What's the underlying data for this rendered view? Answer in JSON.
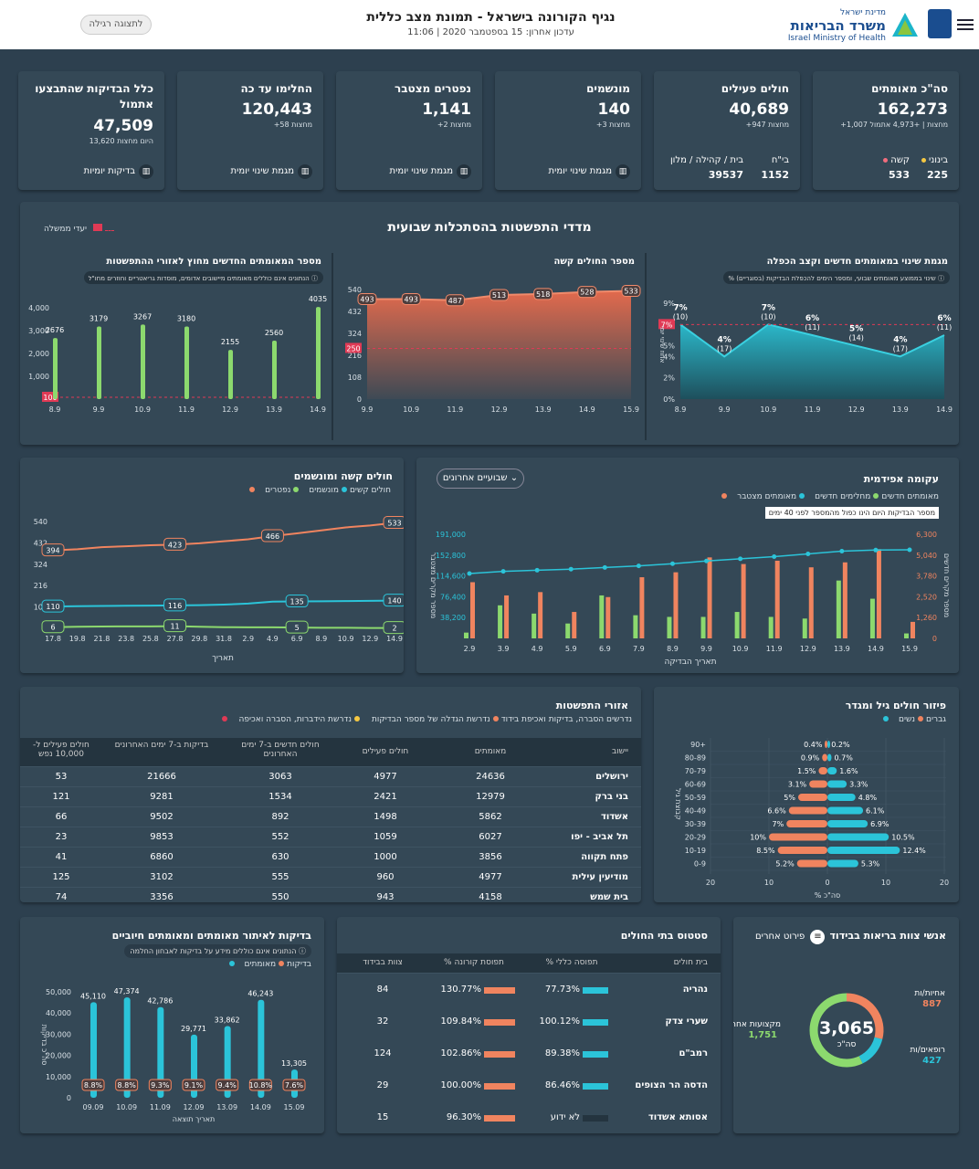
{
  "header": {
    "title": "נגיף הקורונה בישראל - תמונת מצב כללית",
    "updated": "עדכון אחרון: 15 בספטמבר 2020 | 11:06",
    "regular_view_button": "לתצוגה רגילה",
    "ministry_small": "מדינת ישראל",
    "ministry_name": "משרד הבריאות",
    "ministry_en": "Israel Ministry of Health"
  },
  "kpis": [
    {
      "title": "סה\"כ מאומתים",
      "value": "162,273",
      "sub": "+1,007 מחצות | +4,973 אתמול",
      "extra": [
        {
          "label": "בינוני",
          "value": "225",
          "color": "#f5c842"
        },
        {
          "label": "קשה",
          "value": "533",
          "color": "#f26d7d"
        }
      ]
    },
    {
      "title": "חולים פעילים",
      "value": "40,689",
      "sub": "+947 מחצות",
      "extra": [
        {
          "label": "בי\"ח",
          "value": "1152"
        },
        {
          "label": "בית / קהילה / מלון",
          "value": "39537"
        }
      ]
    },
    {
      "title": "מונשמים",
      "value": "140",
      "sub": "+3 מחצות",
      "link": "מגמת שינוי יומית"
    },
    {
      "title": "נפטרים מצטבר",
      "value": "1,141",
      "sub": "+2 מחצות",
      "link": "מגמת שינוי יומית"
    },
    {
      "title": "החלימו עד כה",
      "value": "120,443",
      "sub": "+58 מחצות",
      "link": "מגמת שינוי יומית"
    },
    {
      "title": "כלל הבדיקות שהתבצעו אתמול",
      "value": "47,509",
      "sub": "13,620 היום מחצות",
      "link": "בדיקות יומיות"
    }
  ],
  "weekly": {
    "title": "מדדי התפשטות בהסתכלות שבועית",
    "legend": "יעדי ממשלה",
    "chart_data": [
      {
        "type": "area",
        "title": "מגמת שינוי במאומתים חדשים וקצב הכפלה",
        "note": "% שינוי בממוצע מאומתים שבועי, ומספר הימים להכפלת הבדיקות (בסוגריים)",
        "categories": [
          "8.9",
          "9.9",
          "10.9",
          "11.9",
          "12.9",
          "13.9",
          "14.9"
        ],
        "values": [
          7,
          4,
          7,
          6,
          5,
          4,
          6
        ],
        "labels": [
          "7%\n(10)",
          "4%\n(17)",
          "7%\n(10)",
          "6%\n(11)",
          "5%\n(14)",
          "4%\n(17)",
          "6%\n(11)"
        ],
        "ylabel": "אחוז שינוי יומי",
        "yticks": [
          "0%",
          "2%",
          "4%",
          "5%",
          "7%",
          "9%"
        ],
        "target": "7%"
      },
      {
        "type": "area",
        "title": "מספר החולים קשה",
        "categories": [
          "9.9",
          "10.9",
          "11.9",
          "12.9",
          "13.9",
          "14.9",
          "15.9"
        ],
        "values": [
          493,
          493,
          487,
          513,
          518,
          528,
          533
        ],
        "yticks": [
          "0",
          "108",
          "216",
          "324",
          "432",
          "540"
        ],
        "target": "250"
      },
      {
        "type": "bar",
        "title": "מספר המאומתים החדשים מחוץ לאזורי ההתפשטות",
        "note": "הנתונים אינם כוללים מאומתים מיישובים אדומים, מוסדות גריאטריים וחוזרים מחו\"ל",
        "categories": [
          "8.9",
          "9.9",
          "10.9",
          "11.9",
          "12.9",
          "13.9",
          "14.9"
        ],
        "values": [
          2676,
          3179,
          3267,
          3180,
          2155,
          2560,
          4035
        ],
        "yticks": [
          "1,000",
          "2,000",
          "3,000",
          "4,000"
        ],
        "target": "100"
      }
    ]
  },
  "epi": {
    "title": "עקומה אפידמית",
    "dropdown": "שבועיים אחרונים",
    "legend": [
      "מאומתים חדשים",
      "מחלימים חדשים",
      "מאומתים מצטבר"
    ],
    "note": "מספר הבדיקות היום הינו כפול מהמספר לפני 40 ימים",
    "xlabel": "תאריך הבדיקה",
    "ylabel_left": "מספר מקרים מצטבר",
    "ylabel_right": "מספר מקרים חדשים",
    "yticks_left": [
      "38,200",
      "76,400",
      "114,600",
      "152,800",
      "191,000"
    ],
    "yticks_right": [
      "0",
      "1,260",
      "2,520",
      "3,780",
      "5,040",
      "6,300"
    ],
    "chart_data": {
      "type": "bar",
      "categories": [
        "2.9",
        "3.9",
        "4.9",
        "5.9",
        "6.9",
        "7.9",
        "8.9",
        "9.9",
        "10.9",
        "11.9",
        "12.9",
        "13.9",
        "14.9",
        "15.9"
      ],
      "series": [
        {
          "name": "מאומתים חדשים",
          "values": [
            3400,
            2600,
            2800,
            1600,
            2500,
            3700,
            4000,
            4900,
            4500,
            4700,
            4300,
            4600,
            5400,
            1000
          ]
        },
        {
          "name": "מחלימים חדשים",
          "values": [
            350,
            2000,
            1500,
            900,
            2600,
            1400,
            1300,
            1300,
            1600,
            1300,
            1200,
            3500,
            2400,
            300
          ]
        },
        {
          "name": "מאומתים מצטבר",
          "values": [
            119000,
            123000,
            125000,
            127000,
            130000,
            133000,
            137000,
            142000,
            146000,
            150000,
            155000,
            160000,
            162000,
            162500
          ]
        }
      ]
    }
  },
  "severe": {
    "title": "חולים קשה ומונשמים",
    "legend": [
      "חולים קשים",
      "מונשמים",
      "נפטרים"
    ],
    "xlabel": "תאריך",
    "yticks": [
      "1",
      "108",
      "216",
      "324",
      "432",
      "540"
    ],
    "chart_data": {
      "type": "line",
      "categories": [
        "17.8",
        "19.8",
        "21.8",
        "23.8",
        "25.8",
        "27.8",
        "29.8",
        "31.8",
        "2.9",
        "4.9",
        "6.9",
        "8.9",
        "10.9",
        "12.9",
        "14.9"
      ],
      "series": [
        {
          "name": "חולים קשים",
          "values": [
            394,
            400,
            410,
            415,
            420,
            423,
            430,
            440,
            450,
            466,
            480,
            495,
            510,
            520,
            533
          ],
          "labels": {
            "0": "394",
            "5": "423",
            "9": "466",
            "14": "533"
          }
        },
        {
          "name": "מונשמים",
          "values": [
            110,
            112,
            113,
            114,
            115,
            116,
            117,
            120,
            125,
            135,
            136,
            137,
            138,
            139,
            140
          ],
          "labels": {
            "0": "110",
            "5": "116",
            "10": "135",
            "14": "140"
          }
        },
        {
          "name": "נפטרים",
          "values": [
            6,
            8,
            9,
            10,
            10,
            11,
            8,
            6,
            5,
            5,
            4,
            3,
            3,
            2,
            2
          ],
          "labels": {
            "0": "6",
            "5": "11",
            "10": "5",
            "14": "2"
          }
        }
      ]
    }
  },
  "age": {
    "title": "פיזור חולים גיל ומגדר",
    "legend": [
      "גברים",
      "נשים"
    ],
    "ylabel": "קבוצת גיל",
    "xlabel": "% סה\"כ",
    "xticks": [
      "20",
      "10",
      "0",
      "10",
      "20"
    ],
    "chart_data": {
      "type": "bar",
      "categories": [
        "90+",
        "80-89",
        "70-79",
        "60-69",
        "50-59",
        "40-49",
        "30-39",
        "20-29",
        "10-19",
        "0-9"
      ],
      "series": [
        {
          "name": "גברים",
          "values": [
            0.2,
            0.7,
            1.6,
            3.3,
            4.8,
            6.1,
            6.9,
            10.5,
            12.4,
            5.3
          ]
        },
        {
          "name": "נשים",
          "values": [
            0.4,
            0.9,
            1.5,
            3.1,
            5,
            6.6,
            7,
            10,
            8.5,
            5.2
          ]
        }
      ]
    }
  },
  "regions": {
    "title": "אזורי התפשטות",
    "legend": [
      "נדרשים הסברה, בדיקות ואכיפת בידוד",
      "נדרשת הגדלה של מספר הבדיקות",
      "נדרשת הגדלה, בדיקות ואכיפת בידוד",
      "נדרשת הידברות, הסברה ואכיפה"
    ],
    "headers": [
      "יישוב",
      "מאומתים",
      "חולים פעילים",
      "חולים חדשים ב-7 ימים האחרונים",
      "בדיקות ב-7 ימים האחרונים",
      "חולים פעילים ל- 10,000 נפש"
    ],
    "rows": [
      [
        "ירושלים",
        "24636",
        "4977",
        "3063",
        "21666",
        "53"
      ],
      [
        "בני ברק",
        "12979",
        "2421",
        "1534",
        "9281",
        "121"
      ],
      [
        "אשדוד",
        "5862",
        "1498",
        "892",
        "9502",
        "66"
      ],
      [
        "תל אביב - יפו",
        "6027",
        "1059",
        "552",
        "9853",
        "23"
      ],
      [
        "פתח תקווה",
        "3856",
        "1000",
        "630",
        "6860",
        "41"
      ],
      [
        "מודיעין עילית",
        "4977",
        "960",
        "555",
        "3102",
        "125"
      ],
      [
        "בית שמש",
        "4158",
        "943",
        "550",
        "3356",
        "74"
      ]
    ]
  },
  "tests": {
    "title": "בדיקות לאיתור מאומתים ומאומתים חיוביים",
    "note": "הנתונים אינם כוללים מידע על בדיקות לאבחון החלמה",
    "legend": [
      "בדיקות",
      "מאומתים"
    ],
    "xlabel": "תאריך תוצאה",
    "ylabel": "סה\"כ בדיקות",
    "yticks": [
      "0",
      "10,000",
      "20,000",
      "30,000",
      "40,000",
      "50,000"
    ],
    "chart_data": {
      "type": "bar",
      "categories": [
        "09.09",
        "10.09",
        "11.09",
        "12.09",
        "13.09",
        "14.09",
        "15.09"
      ],
      "series": [
        {
          "name": "בדיקות",
          "values": [
            45110,
            47374,
            42786,
            29771,
            33862,
            46243,
            13305
          ],
          "labels": [
            "45,110",
            "47,374",
            "42,786",
            "29,771",
            "33,862",
            "46,243",
            "13,305"
          ]
        },
        {
          "name": "מאומתים",
          "values": [
            8.8,
            8.8,
            9.3,
            9.1,
            9.4,
            10.8,
            7.6
          ],
          "labels": [
            "8.8%",
            "8.8%",
            "9.3%",
            "9.1%",
            "9.4%",
            "10.8%",
            "7.6%"
          ]
        }
      ]
    }
  },
  "hospitals": {
    "title": "סטטוס בתי החולים",
    "headers": [
      "בית חולים",
      "% תפוסה כללי",
      "% תפוסת קורונה",
      "צוות בבידוד"
    ],
    "rows": [
      {
        "name": "נהריה",
        "general": "77.73%",
        "gv": 77.73,
        "corona": "130.77%",
        "cv": 130.77,
        "staff": "84"
      },
      {
        "name": "שערי צדק",
        "general": "100.12%",
        "gv": 100.12,
        "corona": "109.84%",
        "cv": 109.84,
        "staff": "32"
      },
      {
        "name": "רמב\"ם",
        "general": "89.38%",
        "gv": 89.38,
        "corona": "102.86%",
        "cv": 102.86,
        "staff": "124"
      },
      {
        "name": "הדסה הר הצופים",
        "general": "86.46%",
        "gv": 86.46,
        "corona": "100.00%",
        "cv": 100,
        "staff": "29"
      },
      {
        "name": "אסותא אשדוד",
        "general": "לא ידוע",
        "gv": 0,
        "corona": "96.30%",
        "cv": 96.3,
        "staff": "15"
      }
    ]
  },
  "staff": {
    "title": "אנשי צוות בריאות בבידוד",
    "detail_button": "פירוט אחרים",
    "total": "3,065",
    "total_label": "סה\"כ",
    "chart_data": {
      "type": "pie",
      "categories": [
        "אחיות/ות",
        "רופאים/ות",
        "מקצועות אחרים"
      ],
      "values": [
        887,
        427,
        1751
      ],
      "labels": [
        "887",
        "427",
        "1,751"
      ]
    },
    "colors": [
      "#f0845f",
      "#2bc4d9",
      "#8cd96e"
    ]
  }
}
